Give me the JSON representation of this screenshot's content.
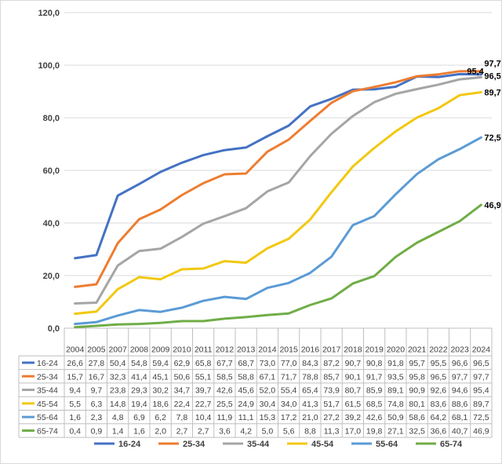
{
  "chart_data": {
    "type": "line",
    "title": "",
    "xlabel": "",
    "ylabel": "",
    "ylim": [
      0,
      120
    ],
    "yticks": [
      "0,0",
      "20,0",
      "40,0",
      "60,0",
      "80,0",
      "100,0",
      "120,0"
    ],
    "grid": true,
    "legend": "bottom",
    "x": [
      "2004",
      "2005",
      "2007",
      "2008",
      "2009",
      "2010",
      "2011",
      "2012",
      "2013",
      "2014",
      "2015",
      "2016",
      "2017",
      "2018",
      "2019",
      "2020",
      "2021",
      "2022",
      "2023",
      "2024"
    ],
    "series": [
      {
        "name": "16-24",
        "color": "#4472c4",
        "end_label": "96,5",
        "values": [
          26.6,
          27.8,
          50.4,
          54.8,
          59.4,
          62.9,
          65.8,
          67.7,
          68.7,
          73.0,
          77.0,
          84.3,
          87.2,
          90.7,
          90.8,
          91.8,
          95.7,
          95.5,
          96.6,
          96.5
        ],
        "labels": [
          "26,6",
          "27,8",
          "50,4",
          "54,8",
          "59,4",
          "62,9",
          "65,8",
          "67,7",
          "68,7",
          "73,0",
          "77,0",
          "84,3",
          "87,2",
          "90,7",
          "90,8",
          "91,8",
          "95,7",
          "95,5",
          "96,6",
          "96,5"
        ]
      },
      {
        "name": "25-34",
        "color": "#ed7d31",
        "end_label": "97,7",
        "values": [
          15.7,
          16.7,
          32.3,
          41.4,
          45.1,
          50.6,
          55.1,
          58.5,
          58.8,
          67.1,
          71.7,
          78.8,
          85.7,
          90.1,
          91.7,
          93.5,
          95.8,
          96.5,
          97.7,
          97.7
        ],
        "labels": [
          "15,7",
          "16,7",
          "32,3",
          "41,4",
          "45,1",
          "50,6",
          "55,1",
          "58,5",
          "58,8",
          "67,1",
          "71,7",
          "78,8",
          "85,7",
          "90,1",
          "91,7",
          "93,5",
          "95,8",
          "96,5",
          "97,7",
          "97,7"
        ]
      },
      {
        "name": "35-44",
        "color": "#a5a5a5",
        "end_label": "95,4",
        "values": [
          9.4,
          9.7,
          23.8,
          29.3,
          30.2,
          34.7,
          39.7,
          42.6,
          45.6,
          52.0,
          55.4,
          65.4,
          73.9,
          80.7,
          85.9,
          89.1,
          90.9,
          92.6,
          94.6,
          95.4
        ],
        "labels": [
          "9,4",
          "9,7",
          "23,8",
          "29,3",
          "30,2",
          "34,7",
          "39,7",
          "42,6",
          "45,6",
          "52,0",
          "55,4",
          "65,4",
          "73,9",
          "80,7",
          "85,9",
          "89,1",
          "90,9",
          "92,6",
          "94,6",
          "95,4"
        ]
      },
      {
        "name": "45-54",
        "color": "#f2c80f",
        "end_label": "89,7",
        "values": [
          5.5,
          6.3,
          14.8,
          19.4,
          18.6,
          22.4,
          22.7,
          25.5,
          24.9,
          30.4,
          34.0,
          41.3,
          51.7,
          61.5,
          68.5,
          74.8,
          80.1,
          83.6,
          88.6,
          89.7
        ],
        "labels": [
          "5,5",
          "6,3",
          "14,8",
          "19,4",
          "18,6",
          "22,4",
          "22,7",
          "25,5",
          "24,9",
          "30,4",
          "34,0",
          "41,3",
          "51,7",
          "61,5",
          "68,5",
          "74,8",
          "80,1",
          "83,6",
          "88,6",
          "89,7"
        ]
      },
      {
        "name": "55-64",
        "color": "#5b9bd5",
        "end_label": "72,5",
        "values": [
          1.6,
          2.3,
          4.8,
          6.9,
          6.2,
          7.8,
          10.4,
          11.9,
          11.1,
          15.3,
          17.2,
          21.0,
          27.2,
          39.2,
          42.6,
          50.9,
          58.6,
          64.2,
          68.1,
          72.5
        ],
        "labels": [
          "1,6",
          "2,3",
          "4,8",
          "6,9",
          "6,2",
          "7,8",
          "10,4",
          "11,9",
          "11,1",
          "15,3",
          "17,2",
          "21,0",
          "27,2",
          "39,2",
          "42,6",
          "50,9",
          "58,6",
          "64,2",
          "68,1",
          "72,5"
        ]
      },
      {
        "name": "65-74",
        "color": "#70ad47",
        "end_label": "46,9",
        "values": [
          0.4,
          0.9,
          1.4,
          1.6,
          2.0,
          2.7,
          2.7,
          3.6,
          4.2,
          5.0,
          5.6,
          8.8,
          11.3,
          17.0,
          19.8,
          27.1,
          32.5,
          36.6,
          40.7,
          46.9
        ],
        "labels": [
          "0,4",
          "0,9",
          "1,4",
          "1,6",
          "2,0",
          "2,7",
          "2,7",
          "3,6",
          "4,2",
          "5,0",
          "5,6",
          "8,8",
          "11,3",
          "17,0",
          "19,8",
          "27,1",
          "32,5",
          "36,6",
          "40,7",
          "46,9"
        ]
      }
    ]
  }
}
